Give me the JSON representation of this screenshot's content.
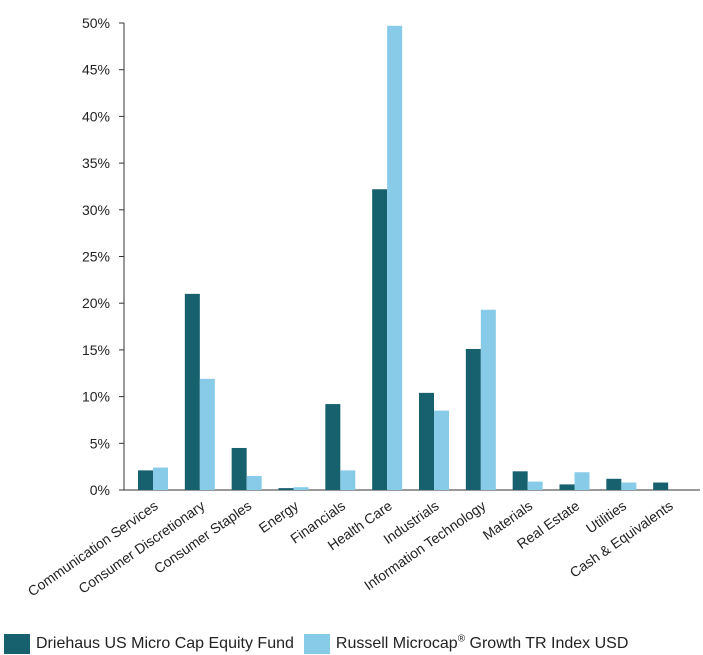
{
  "chart_data": {
    "type": "bar",
    "categories": [
      "Communication Services",
      "Consumer Discretionary",
      "Consumer Staples",
      "Energy",
      "Financials",
      "Health Care",
      "Industrials",
      "Information Technology",
      "Materials",
      "Real Estate",
      "Utilities",
      "Cash & Equivalents"
    ],
    "series": [
      {
        "name": "Driehaus US Micro Cap Equity Fund",
        "color": "#17606e",
        "values": [
          2.1,
          21.0,
          4.5,
          0.2,
          9.2,
          32.2,
          10.4,
          15.1,
          2.0,
          0.6,
          1.2,
          0.8
        ]
      },
      {
        "name": "Russell Microcap",
        "name_sup": "®",
        "name_suffix": " Growth TR Index USD",
        "color": "#87cbe8",
        "values": [
          2.4,
          11.9,
          1.5,
          0.3,
          2.1,
          49.7,
          8.5,
          19.3,
          0.9,
          1.9,
          0.8,
          0.0
        ]
      }
    ],
    "ylim": [
      0,
      50
    ],
    "yticks": [
      0,
      5,
      10,
      15,
      20,
      25,
      30,
      35,
      40,
      45,
      50
    ],
    "ytick_labels": [
      "0%",
      "5%",
      "10%",
      "15%",
      "20%",
      "25%",
      "30%",
      "35%",
      "40%",
      "45%",
      "50%"
    ],
    "grid": false,
    "legend_position": "bottom"
  }
}
